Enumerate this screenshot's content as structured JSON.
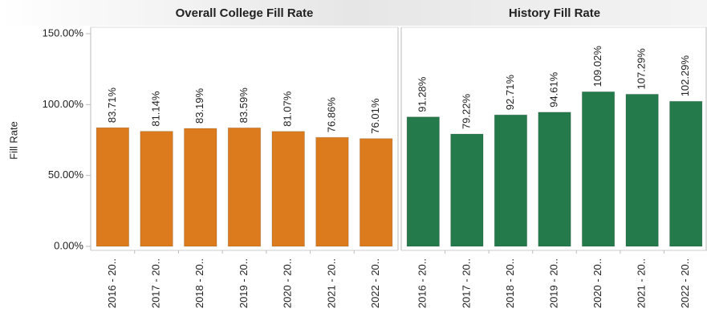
{
  "chart_data": [
    {
      "type": "bar",
      "title": "Overall College Fill Rate",
      "y_label": "Fill Rate",
      "categories": [
        "2016 - 20..",
        "2017 - 20..",
        "2018 - 20..",
        "2019 - 20..",
        "2020 - 20..",
        "2021 - 20..",
        "2022 - 20.."
      ],
      "values": [
        83.71,
        81.14,
        83.19,
        83.59,
        81.07,
        76.86,
        76.01
      ],
      "value_labels": [
        "83.71%",
        "81.14%",
        "83.19%",
        "83.59%",
        "81.07%",
        "76.86%",
        "76.01%"
      ],
      "color": "#dc7b1d",
      "ylim": [
        0,
        150
      ],
      "yticks": [
        {
          "value": 0,
          "label": "0.00%"
        },
        {
          "value": 50,
          "label": "50.00%"
        },
        {
          "value": 100,
          "label": "100.00%"
        },
        {
          "value": 150,
          "label": "150.00%"
        }
      ]
    },
    {
      "type": "bar",
      "title": "History Fill Rate",
      "categories": [
        "2016 - 20..",
        "2017 - 20..",
        "2018 - 20..",
        "2019 - 20..",
        "2020 - 20..",
        "2021 - 20..",
        "2022 - 20.."
      ],
      "values": [
        91.28,
        79.22,
        92.71,
        94.61,
        109.02,
        107.29,
        102.29
      ],
      "value_labels": [
        "91.28%",
        "79.22%",
        "92.71%",
        "94.61%",
        "109.02%",
        "107.29%",
        "102.29%"
      ],
      "color": "#247a4b",
      "ylim": [
        0,
        150
      ]
    }
  ]
}
